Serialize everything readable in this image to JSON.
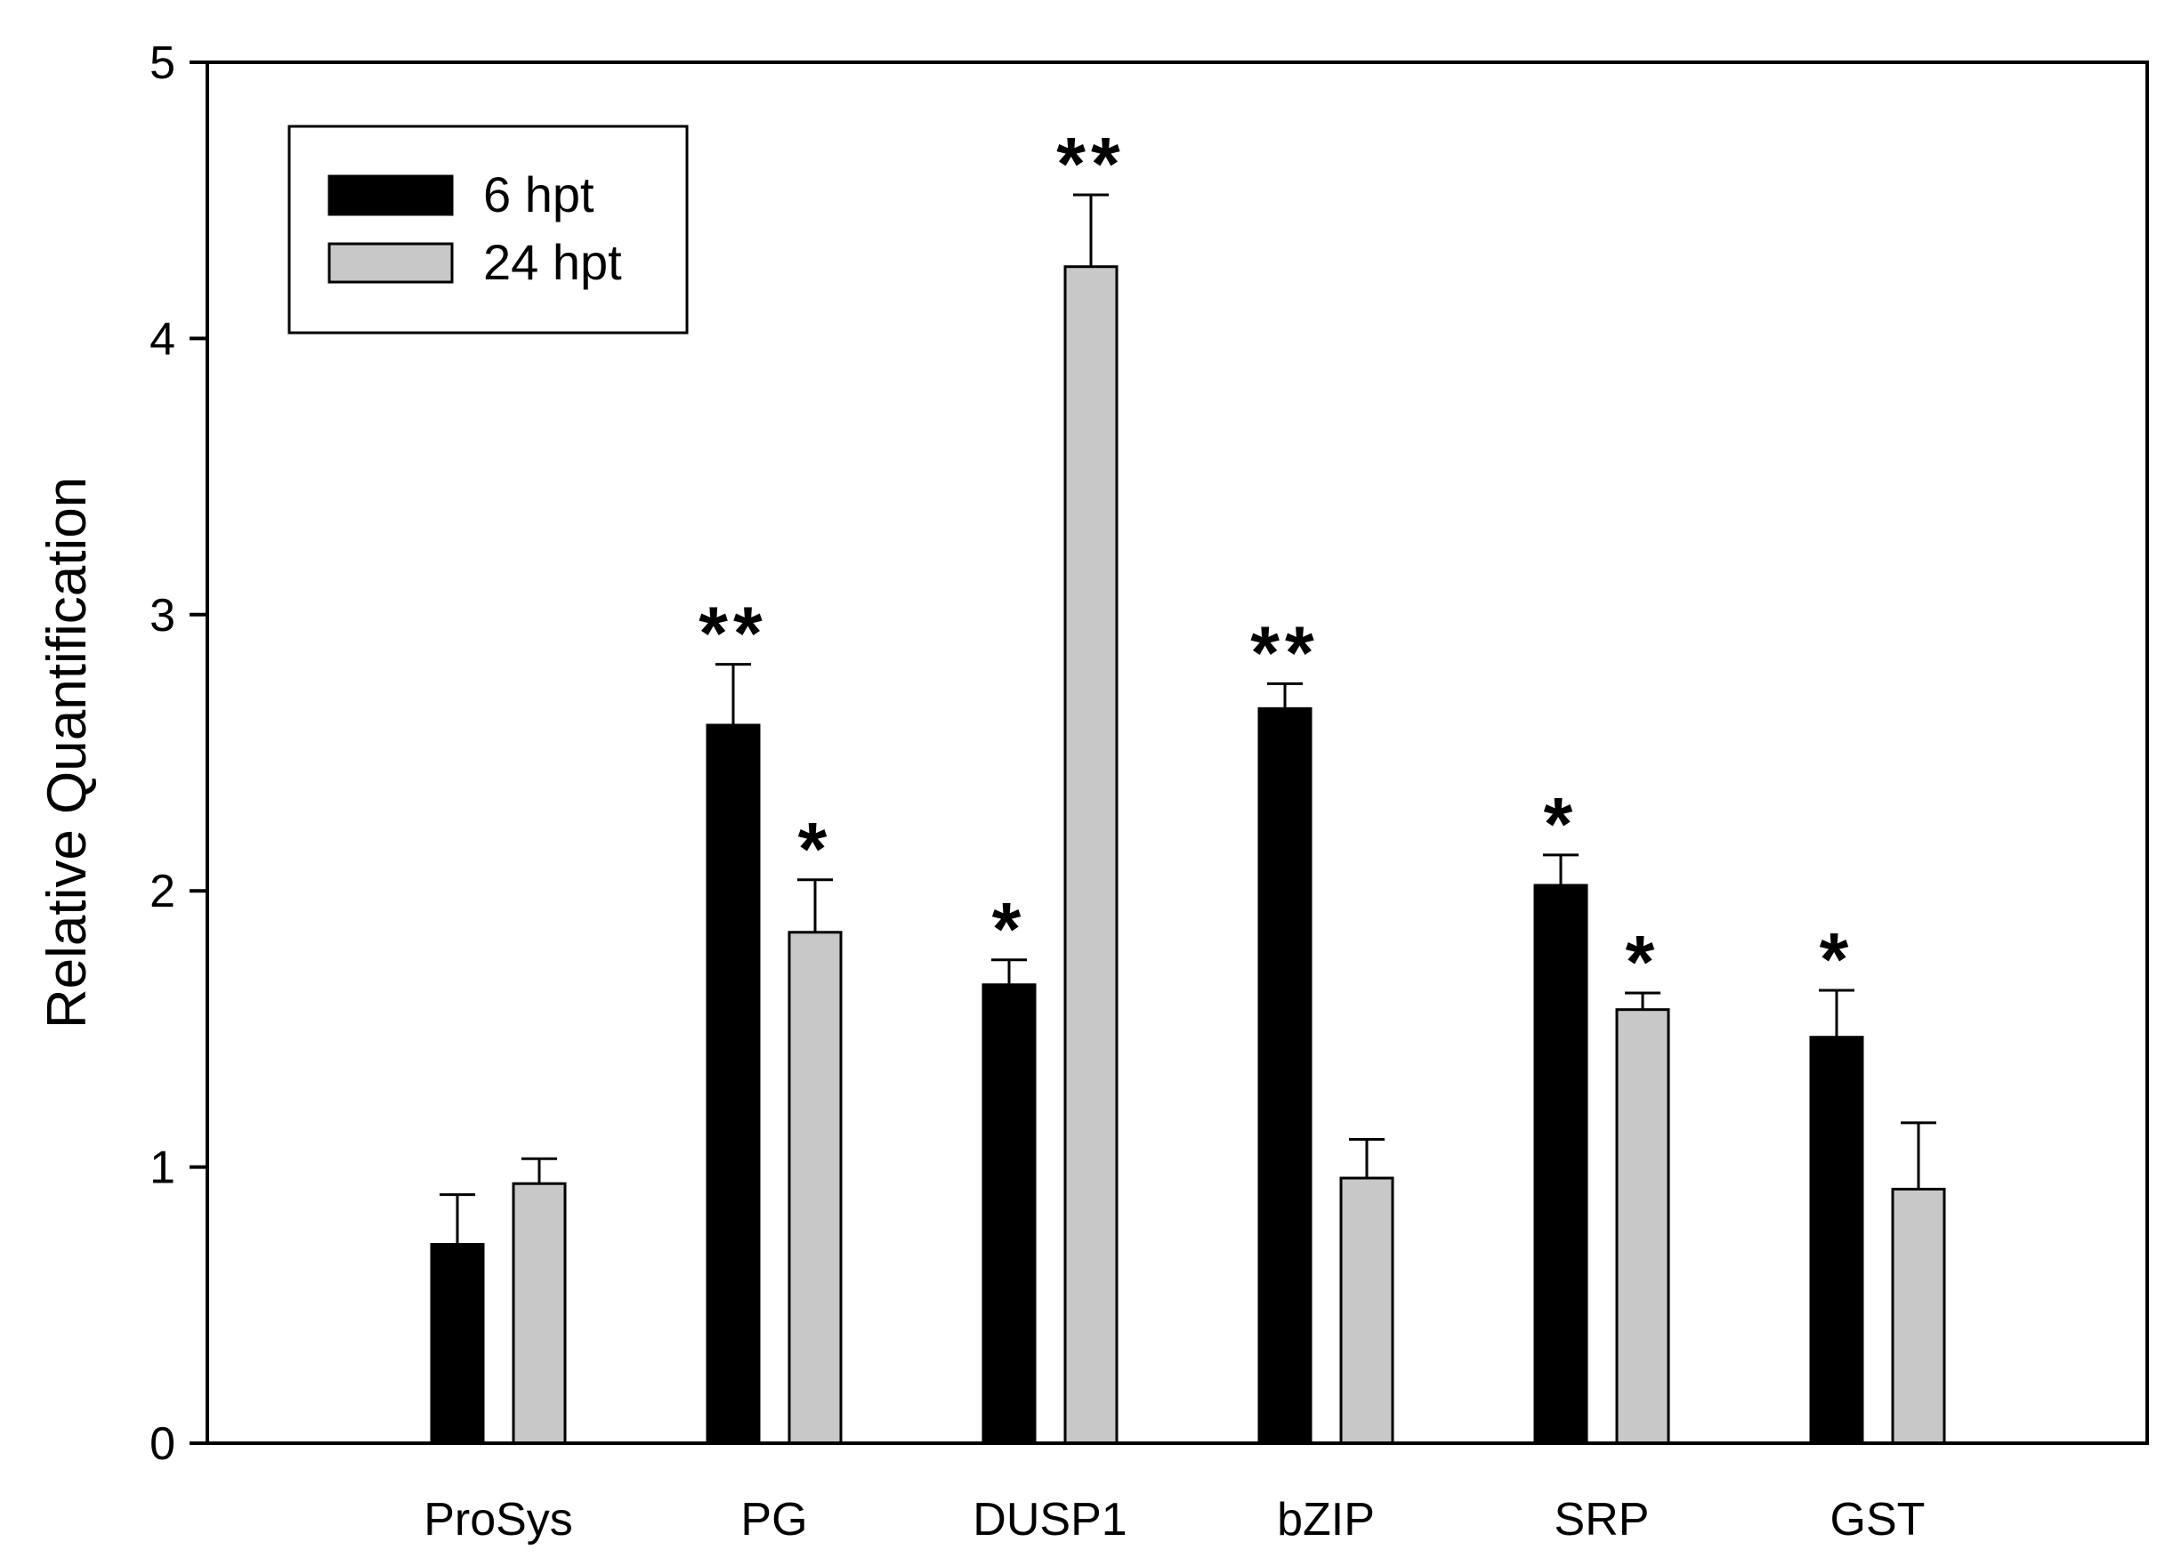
{
  "chart_data": {
    "type": "bar",
    "title": "",
    "xlabel": "",
    "ylabel": "Relative Quantification",
    "ylim": [
      0,
      5
    ],
    "yticks": [
      "0",
      "1",
      "2",
      "3",
      "4",
      "5"
    ],
    "categories": [
      "ProSys",
      "PG",
      "DUSP1",
      "bZIP",
      "SRP",
      "GST"
    ],
    "series": [
      {
        "name": "6 hpt",
        "color": "#000000",
        "values": [
          0.72,
          2.6,
          1.66,
          2.66,
          2.02,
          1.47
        ],
        "errors": [
          0.18,
          0.22,
          0.09,
          0.09,
          0.11,
          0.17
        ],
        "significance": [
          "",
          "**",
          "*",
          "**",
          "*",
          "*"
        ]
      },
      {
        "name": "24 hpt",
        "color": "#c8c8c8",
        "values": [
          0.94,
          1.85,
          4.26,
          0.96,
          1.57,
          0.92
        ],
        "errors": [
          0.09,
          0.19,
          0.26,
          0.14,
          0.06,
          0.24
        ],
        "significance": [
          "",
          "*",
          "**",
          "",
          "*",
          ""
        ]
      }
    ],
    "legend": {
      "position": "top-left"
    }
  }
}
